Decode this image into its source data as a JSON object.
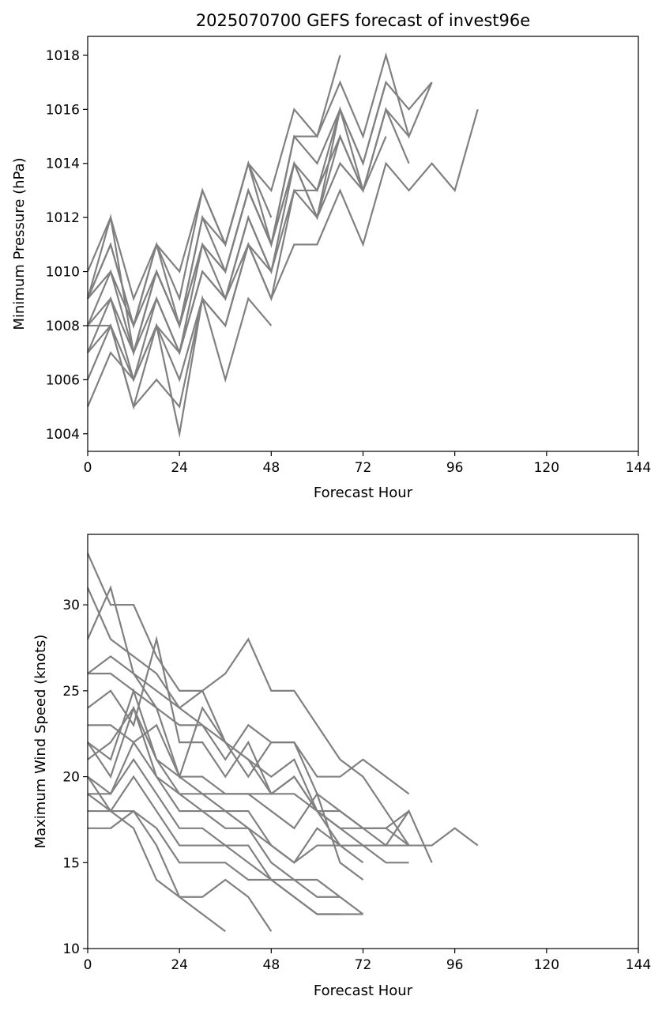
{
  "chart_data": [
    {
      "type": "line",
      "title": "2025070700 GEFS forecast of invest96e",
      "xlabel": "Forecast Hour",
      "ylabel": "Minimum Pressure (hPa)",
      "xlim": [
        0,
        144
      ],
      "ylim": [
        1003.35,
        1018.7
      ],
      "xticks": [
        0,
        24,
        48,
        72,
        96,
        120,
        144
      ],
      "xtick_labels": [
        "0",
        "24",
        "48",
        "72",
        "96",
        "120",
        "144"
      ],
      "yticks": [
        1004,
        1006,
        1008,
        1010,
        1012,
        1014,
        1016,
        1018
      ],
      "ytick_labels": [
        "1004",
        "1006",
        "1008",
        "1010",
        "1012",
        "1014",
        "1016",
        "1018"
      ],
      "grid": false,
      "line_color": "#808080",
      "series": [
        {
          "x": [
            0,
            6,
            12,
            18,
            24,
            30,
            36,
            42,
            48
          ],
          "values": [
            1005,
            1007,
            1006,
            1008,
            1004,
            1009,
            1006,
            1009,
            1008
          ]
        },
        {
          "x": [
            0,
            6,
            12,
            18,
            24,
            30,
            36,
            42,
            48,
            54,
            60,
            66,
            72,
            78,
            84,
            90,
            96,
            102
          ],
          "values": [
            1006,
            1008,
            1005,
            1006,
            1005,
            1009,
            1008,
            1011,
            1009,
            1011,
            1011,
            1013,
            1011,
            1014,
            1013,
            1014,
            1013,
            1016
          ]
        },
        {
          "x": [
            0,
            6,
            12,
            18,
            24,
            30,
            36,
            42,
            48,
            54,
            60,
            66,
            72,
            78
          ],
          "values": [
            1007,
            1008,
            1005,
            1008,
            1006,
            1009,
            1008,
            1011,
            1009,
            1013,
            1012,
            1014,
            1013,
            1015
          ]
        },
        {
          "x": [
            0,
            6,
            12,
            18,
            24,
            30,
            36,
            42,
            48,
            54,
            60,
            66,
            72,
            78,
            84
          ],
          "values": [
            1007,
            1009,
            1006,
            1008,
            1007,
            1010,
            1009,
            1011,
            1010,
            1013,
            1013,
            1015,
            1013,
            1016,
            1014
          ]
        },
        {
          "x": [
            0,
            6,
            12,
            18,
            24,
            30,
            36,
            42,
            48
          ],
          "values": [
            1008,
            1008,
            1006,
            1009,
            1007,
            1010,
            1009,
            1012,
            1010
          ]
        },
        {
          "x": [
            0,
            6,
            12,
            18,
            24,
            30,
            36,
            42,
            48,
            54,
            60,
            66,
            72,
            78,
            84
          ],
          "values": [
            1008,
            1009,
            1007,
            1009,
            1007,
            1011,
            1009,
            1012,
            1010,
            1014,
            1012,
            1015,
            1013,
            1016,
            1015
          ]
        },
        {
          "x": [
            0,
            6,
            12,
            18,
            24,
            30,
            36,
            42,
            48,
            54,
            60,
            66,
            72,
            78,
            84,
            90
          ],
          "values": [
            1008,
            1010,
            1007,
            1010,
            1008,
            1011,
            1010,
            1013,
            1011,
            1014,
            1013,
            1016,
            1014,
            1017,
            1016,
            1017
          ]
        },
        {
          "x": [
            0,
            6,
            12,
            18,
            24,
            30,
            36,
            42,
            48,
            54,
            60,
            66,
            72,
            78
          ],
          "values": [
            1009,
            1010,
            1008,
            1010,
            1008,
            1012,
            1010,
            1013,
            1011,
            1015,
            1014,
            1016,
            1014,
            1017
          ]
        },
        {
          "x": [
            0,
            6,
            12,
            18,
            24,
            30,
            36,
            42,
            48
          ],
          "values": [
            1009,
            1011,
            1008,
            1011,
            1008,
            1012,
            1011,
            1014,
            1012
          ]
        },
        {
          "x": [
            0,
            6,
            12,
            18,
            24,
            30,
            36,
            42,
            48,
            54,
            60,
            66,
            72,
            78,
            84,
            90
          ],
          "values": [
            1009,
            1011,
            1008,
            1011,
            1009,
            1013,
            1011,
            1014,
            1011,
            1015,
            1015,
            1017,
            1015,
            1018,
            1015,
            1017
          ]
        },
        {
          "x": [
            0,
            6,
            12,
            18,
            24,
            30,
            36,
            42,
            48,
            54,
            60,
            66
          ],
          "values": [
            1010,
            1012,
            1009,
            1011,
            1010,
            1013,
            1011,
            1014,
            1013,
            1016,
            1015,
            1018
          ]
        },
        {
          "x": [
            0,
            6,
            12,
            18,
            24,
            30,
            36,
            42,
            48,
            54,
            60,
            66,
            72
          ],
          "values": [
            1009,
            1012,
            1007,
            1010,
            1008,
            1011,
            1010,
            1013,
            1011,
            1014,
            1012,
            1016,
            1013
          ]
        }
      ]
    },
    {
      "type": "line",
      "title": "",
      "xlabel": "Forecast Hour",
      "ylabel": "Maximum Wind Speed (knots)",
      "xlim": [
        0,
        144
      ],
      "ylim": [
        10,
        34.1
      ],
      "xticks": [
        0,
        24,
        48,
        72,
        96,
        120,
        144
      ],
      "xtick_labels": [
        "0",
        "24",
        "48",
        "72",
        "96",
        "120",
        "144"
      ],
      "yticks": [
        10,
        15,
        20,
        25,
        30
      ],
      "ytick_labels": [
        "10",
        "15",
        "20",
        "25",
        "30"
      ],
      "grid": false,
      "line_color": "#808080",
      "series": [
        {
          "x": [
            0,
            6,
            12,
            18,
            24,
            30,
            36,
            42,
            48,
            54,
            60,
            66,
            72,
            78,
            84,
            90,
            96,
            102
          ],
          "values": [
            33,
            30,
            30,
            27,
            25,
            25,
            22,
            21,
            19,
            20,
            18,
            18,
            17,
            17,
            16,
            16,
            17,
            16
          ]
        },
        {
          "x": [
            0,
            6,
            12,
            18,
            24,
            30,
            36,
            42,
            48,
            54,
            60,
            66,
            72,
            78,
            84
          ],
          "values": [
            31,
            28,
            27,
            26,
            24,
            25,
            26,
            28,
            25,
            25,
            23,
            21,
            20,
            18,
            16
          ]
        },
        {
          "x": [
            0,
            6,
            12,
            18,
            24,
            30,
            36,
            42,
            48,
            54,
            60,
            66,
            72,
            78,
            84
          ],
          "values": [
            28,
            31,
            26,
            24,
            20,
            24,
            22,
            20,
            22,
            22,
            20,
            20,
            21,
            20,
            19
          ]
        },
        {
          "x": [
            0,
            6,
            12,
            18,
            24,
            30,
            36,
            42,
            48,
            54,
            60,
            66,
            72,
            78,
            84
          ],
          "values": [
            26,
            27,
            26,
            25,
            24,
            23,
            21,
            23,
            22,
            22,
            19,
            18,
            17,
            17,
            18
          ]
        },
        {
          "x": [
            0,
            6,
            12,
            18,
            24,
            30,
            36,
            42,
            48,
            54,
            60,
            66,
            72,
            78,
            84,
            90
          ],
          "values": [
            26,
            26,
            25,
            24,
            23,
            23,
            22,
            21,
            20,
            21,
            18,
            17,
            17,
            16,
            18,
            15
          ]
        },
        {
          "x": [
            0,
            6,
            12,
            18,
            24,
            30,
            36,
            42,
            48,
            54,
            60,
            66,
            72,
            78,
            84
          ],
          "values": [
            24,
            25,
            23,
            28,
            22,
            22,
            20,
            22,
            19,
            19,
            18,
            17,
            16,
            16,
            16
          ]
        },
        {
          "x": [
            0,
            6,
            12,
            18,
            24,
            30,
            36,
            42,
            48,
            54,
            60,
            66,
            72,
            78,
            84
          ],
          "values": [
            23,
            23,
            22,
            23,
            20,
            20,
            19,
            19,
            19,
            20,
            18,
            16,
            16,
            15,
            15
          ]
        },
        {
          "x": [
            0,
            6,
            12,
            18,
            24,
            30,
            36,
            42,
            48,
            54,
            60,
            66,
            72
          ],
          "values": [
            22,
            21,
            25,
            21,
            20,
            19,
            19,
            19,
            18,
            17,
            19,
            15,
            14
          ]
        },
        {
          "x": [
            0,
            6,
            12,
            18,
            24,
            30,
            36,
            42,
            48,
            54,
            60,
            66,
            72
          ],
          "values": [
            22,
            20,
            24,
            21,
            19,
            19,
            18,
            18,
            16,
            15,
            17,
            16,
            15
          ]
        },
        {
          "x": [
            0,
            6,
            12,
            18,
            24,
            30,
            36,
            42,
            48,
            54,
            60,
            66,
            72
          ],
          "values": [
            21,
            22,
            24,
            20,
            19,
            18,
            18,
            17,
            16,
            15,
            16,
            16,
            16
          ]
        },
        {
          "x": [
            0,
            6,
            12,
            18,
            24,
            30,
            36,
            42,
            48,
            54,
            60,
            66,
            72
          ],
          "values": [
            20,
            19,
            22,
            20,
            18,
            18,
            17,
            17,
            15,
            14,
            14,
            13,
            12
          ]
        },
        {
          "x": [
            0,
            6,
            12,
            18,
            24,
            30,
            36,
            42,
            48,
            54,
            60,
            66
          ],
          "values": [
            19,
            19,
            21,
            19,
            17,
            17,
            16,
            16,
            14,
            14,
            13,
            13
          ]
        },
        {
          "x": [
            0,
            6,
            12,
            18,
            24,
            30,
            36,
            42,
            48,
            54,
            60,
            66
          ],
          "values": [
            19,
            18,
            20,
            18,
            16,
            16,
            16,
            15,
            14,
            13,
            12,
            12
          ]
        },
        {
          "x": [
            0,
            6,
            12,
            18,
            24,
            30,
            36,
            42,
            48,
            54,
            60,
            66,
            72
          ],
          "values": [
            17,
            17,
            18,
            17,
            15,
            15,
            15,
            14,
            14,
            13,
            12,
            12,
            12
          ]
        },
        {
          "x": [
            0,
            6,
            12,
            18,
            24,
            30,
            36,
            42,
            48
          ],
          "values": [
            18,
            18,
            17,
            14,
            13,
            13,
            14,
            13,
            11
          ]
        },
        {
          "x": [
            0,
            6,
            12,
            18,
            24,
            30,
            36
          ],
          "values": [
            20,
            18,
            18,
            16,
            13,
            12,
            11
          ]
        }
      ]
    }
  ]
}
